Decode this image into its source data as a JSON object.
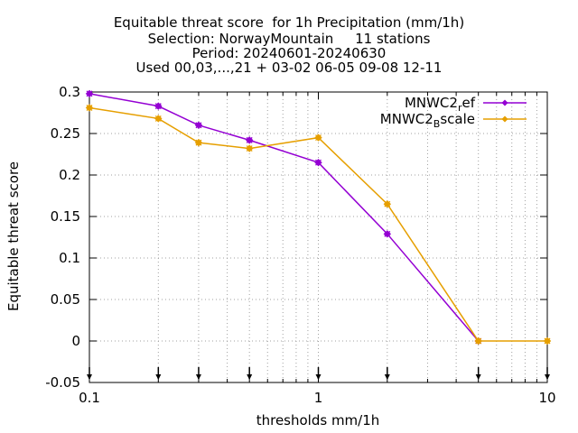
{
  "chart_data": {
    "type": "line",
    "title_lines": [
      "Equitable threat score  for 1h Precipitation (mm/1h)",
      "Selection: NorwayMountain     11 stations",
      "Period: 20240601-20240630",
      "Used 00,03,...,21 + 03-02 06-05 09-08 12-11"
    ],
    "xlabel": "thresholds mm/1h",
    "ylabel": "Equitable threat score",
    "x_scale": "log",
    "xlim": [
      0.1,
      10
    ],
    "ylim": [
      -0.05,
      0.3
    ],
    "x_ticks": [
      {
        "value": 0.1,
        "label": "0.1"
      },
      {
        "value": 1,
        "label": "1"
      },
      {
        "value": 10,
        "label": "10"
      }
    ],
    "y_ticks": [
      {
        "value": 0.3,
        "label": "0.3"
      },
      {
        "value": 0.25,
        "label": "0.25"
      },
      {
        "value": 0.2,
        "label": "0.2"
      },
      {
        "value": 0.15,
        "label": "0.15"
      },
      {
        "value": 0.1,
        "label": "0.1"
      },
      {
        "value": 0.05,
        "label": "0.05"
      },
      {
        "value": 0,
        "label": "0"
      },
      {
        "value": -0.05,
        "label": "-0.05"
      }
    ],
    "grid": true,
    "legend_position": "top-right",
    "x": [
      0.1,
      0.2,
      0.3,
      0.5,
      1,
      2,
      5,
      10
    ],
    "series": [
      {
        "name": "MNWC2_ref",
        "legend_main": "MNWC2",
        "legend_sub": "r",
        "legend_rest": "ef",
        "color": "#9400d3",
        "values": [
          0.298,
          0.283,
          0.26,
          0.242,
          0.215,
          0.129,
          0.0,
          null
        ]
      },
      {
        "name": "MNWC2_Bscale",
        "legend_main": "MNWC2",
        "legend_sub": "B",
        "legend_rest": "scale",
        "color": "#e69f00",
        "values": [
          0.281,
          0.268,
          0.239,
          0.232,
          0.245,
          0.165,
          0.0,
          0.0
        ]
      }
    ],
    "arrow_markers_x": [
      0.1,
      0.2,
      0.3,
      0.5,
      1,
      2,
      5,
      10
    ]
  }
}
